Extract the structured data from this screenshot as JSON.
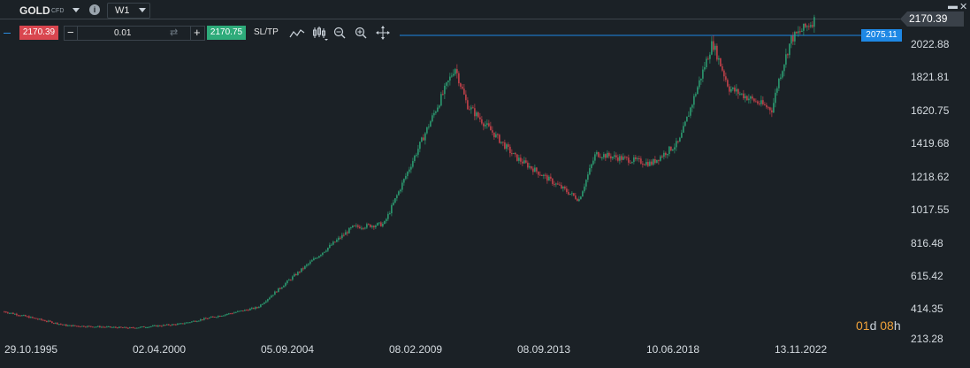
{
  "header": {
    "symbol": "GOLD",
    "symbol_tag": "CFD",
    "info_icon": "i",
    "timeframe": "W1",
    "window_buttons": [
      "▬",
      "✕"
    ]
  },
  "trade": {
    "sell_price": "2170.39",
    "minus": "−",
    "quantity": "0.01",
    "swap_icon": "⇄",
    "plus": "+",
    "buy_price": "2170.75",
    "sl_tp": "SL/TP"
  },
  "toolbar_icons": [
    "line-tool-icon",
    "candle-type-icon",
    "zoom-out-icon",
    "zoom-in-icon",
    "crosshair-icon"
  ],
  "price_axis": [
    "2170.39",
    "2022.88",
    "1821.81",
    "1620.75",
    "1419.68",
    "1218.62",
    "1017.55",
    "816.48",
    "615.42",
    "414.35",
    "213.28"
  ],
  "current_price": "2170.39",
  "price_line": "2075.11",
  "date_axis": [
    "29.10.1995",
    "02.04.2000",
    "05.09.2004",
    "08.02.2009",
    "08.09.2013",
    "10.06.2018",
    "13.11.2022"
  ],
  "countdown": {
    "days": "01",
    "d": "d",
    "hours": "08",
    "h": "h"
  },
  "colors": {
    "up": "#2eab7a",
    "down": "#d9464f",
    "price_line": "#1e88e5",
    "countdown": "#f0a23a"
  },
  "chart_data": {
    "type": "candlestick",
    "timeframe": "W1",
    "ylim": [
      213.28,
      2170.39
    ],
    "x": [
      "1995-10-29",
      "1998",
      "2000-04-02",
      "2002",
      "2004-09-05",
      "2006",
      "2008",
      "2009-02-08",
      "2011-08",
      "2012",
      "2013-09-08",
      "2015-12",
      "2016-07",
      "2018-06-10",
      "2019-06",
      "2020-08",
      "2021-03",
      "2022-09",
      "2022-11-13",
      "2023-05",
      "2024-03"
    ],
    "values": [
      385,
      300,
      285,
      310,
      410,
      610,
      900,
      920,
      1880,
      1650,
      1330,
      1070,
      1350,
      1290,
      1420,
      2030,
      1750,
      1620,
      1780,
      2050,
      2170
    ]
  }
}
